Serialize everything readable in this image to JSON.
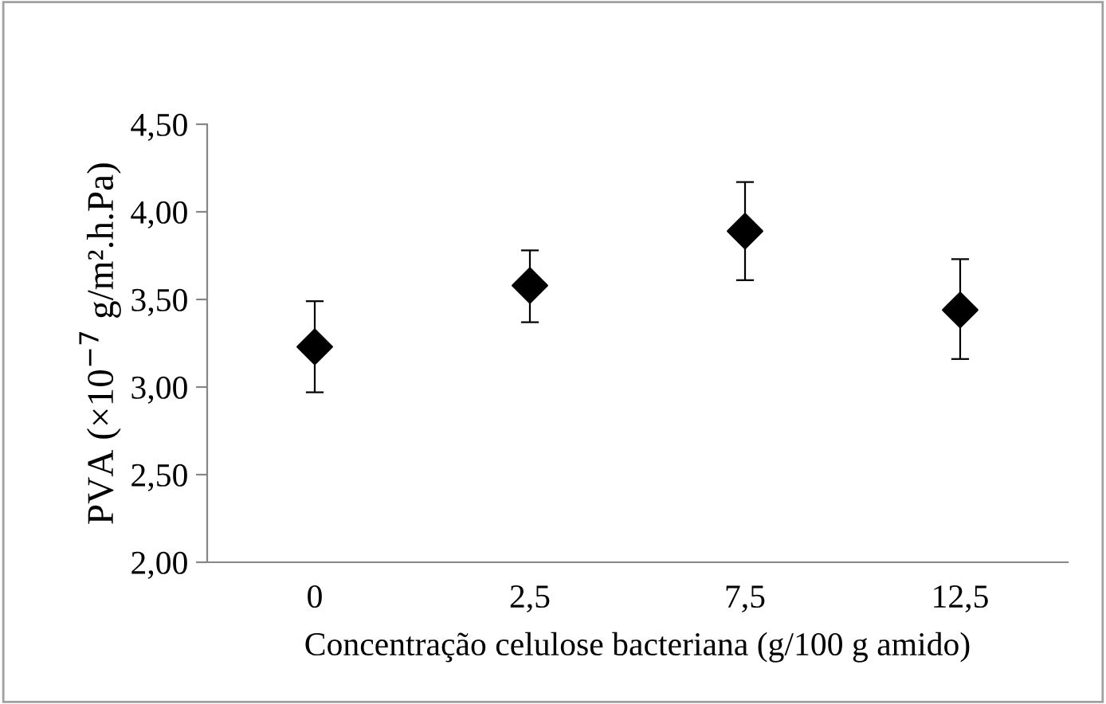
{
  "chart_data": {
    "type": "scatter",
    "xlabel": "Concentração celulose bacteriana (g/100 g amido)",
    "ylabel": "PVA (×10$^{−7}$ g/m².h.Pa)",
    "categories": [
      "0",
      "2,5",
      "7,5",
      "12,5"
    ],
    "series": [
      {
        "color": "#000000",
        "values": [
          3.23,
          3.58,
          3.89,
          3.44
        ],
        "errors": [
          [
            2.97,
            3.49
          ],
          [
            3.37,
            3.78
          ],
          [
            3.61,
            4.17
          ],
          [
            3.16,
            3.73
          ]
        ]
      }
    ],
    "marker": "diamond",
    "grid": false,
    "legend": false,
    "ylim": [
      2.0,
      4.5
    ],
    "yticks": [
      {
        "value": 2.0,
        "label": "2,00"
      },
      {
        "value": 2.5,
        "label": "2,50"
      },
      {
        "value": 3.0,
        "label": "3,00"
      },
      {
        "value": 3.5,
        "label": "3,50"
      },
      {
        "value": 4.0,
        "label": "4,00"
      },
      {
        "value": 4.5,
        "label": "4,50"
      }
    ]
  }
}
